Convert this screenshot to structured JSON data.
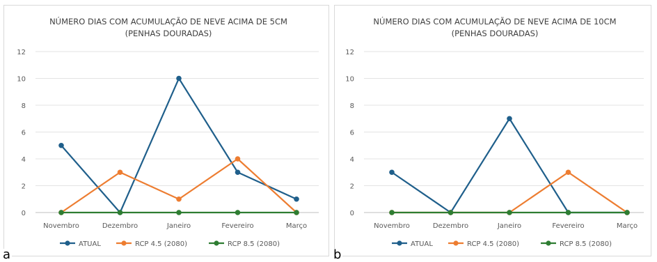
{
  "chart_data": [
    {
      "type": "line",
      "panel_label": "a",
      "title": "NÚMERO DIAS COM ACUMULAÇÃO DE NEVE ACIMA DE 5CM",
      "subtitle": "(PENHAS DOURADAS)",
      "categories": [
        "Novembro",
        "Dezembro",
        "Janeiro",
        "Fevereiro",
        "Março"
      ],
      "ylim": [
        0,
        12
      ],
      "yticks": [
        "0",
        "2",
        "4",
        "6",
        "8",
        "10",
        "12"
      ],
      "grid": true,
      "legend_position": "bottom",
      "series": [
        {
          "name": "ATUAL",
          "color": "#1f5f8b",
          "values": [
            5,
            0,
            10,
            3,
            1
          ]
        },
        {
          "name": "RCP 4.5 (2080)",
          "color": "#ed7d31",
          "values": [
            0,
            3,
            1,
            4,
            0
          ]
        },
        {
          "name": "RCP 8.5 (2080)",
          "color": "#2e7d32",
          "values": [
            0,
            0,
            0,
            0,
            0
          ]
        }
      ]
    },
    {
      "type": "line",
      "panel_label": "b",
      "title": "NÚMERO DIAS COM ACUMULAÇÃO DE NEVE ACIMA DE 10CM",
      "subtitle": "(PENHAS DOURADAS)",
      "categories": [
        "Novembro",
        "Dezembro",
        "Janeiro",
        "Fevereiro",
        "Março"
      ],
      "ylim": [
        0,
        12
      ],
      "yticks": [
        "0",
        "2",
        "4",
        "6",
        "8",
        "10",
        "12"
      ],
      "grid": true,
      "legend_position": "bottom",
      "series": [
        {
          "name": "ATUAL",
          "color": "#1f5f8b",
          "values": [
            3,
            0,
            7,
            0,
            0
          ]
        },
        {
          "name": "RCP 4.5 (2080)",
          "color": "#ed7d31",
          "values": [
            0,
            0,
            0,
            3,
            0
          ]
        },
        {
          "name": "RCP 8.5 (2080)",
          "color": "#2e7d32",
          "values": [
            0,
            0,
            0,
            0,
            0
          ]
        }
      ]
    }
  ]
}
